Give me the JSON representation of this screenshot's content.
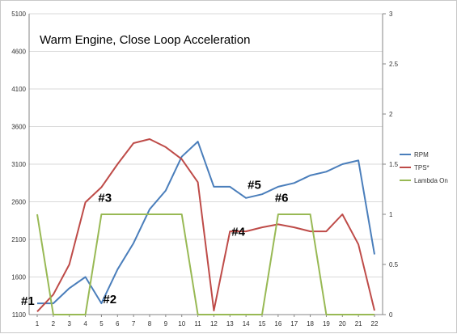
{
  "chart_data": {
    "type": "line",
    "title": "Warm Engine, Close Loop Acceleration",
    "x": [
      1,
      2,
      3,
      4,
      5,
      6,
      7,
      8,
      9,
      10,
      11,
      12,
      13,
      14,
      15,
      16,
      17,
      18,
      19,
      20,
      21,
      22
    ],
    "y_left_range": [
      1100,
      5100
    ],
    "y_left_ticks": [
      1100,
      1600,
      2100,
      2600,
      3100,
      3600,
      4100,
      4600,
      5100
    ],
    "y_right_range": [
      0,
      3
    ],
    "y_right_ticks": [
      0,
      0.5,
      1,
      1.5,
      2,
      2.5,
      3
    ],
    "y_right_tick_labels": [
      "0",
      "0.5",
      "1",
      "1.5",
      "2",
      "2.5",
      "3"
    ],
    "grid": "horizontal",
    "legend_position": "right",
    "series": [
      {
        "name": "RPM",
        "axis": "left",
        "color": "#4a7ebb",
        "values": [
          1250,
          1250,
          1450,
          1600,
          1250,
          1700,
          2050,
          2500,
          2750,
          3200,
          3400,
          2800,
          2800,
          2650,
          2700,
          2800,
          2850,
          2950,
          3000,
          3100,
          3150,
          1900
        ]
      },
      {
        "name": "TPS*",
        "axis": "right",
        "color": "#be4b48",
        "values": [
          0.03,
          0.2,
          0.5,
          1.12,
          1.27,
          1.5,
          1.71,
          1.75,
          1.67,
          1.55,
          1.32,
          0.04,
          0.83,
          0.83,
          0.87,
          0.9,
          0.87,
          0.83,
          0.83,
          1.0,
          0.7,
          0.04
        ]
      },
      {
        "name": "Lambda On",
        "axis": "right",
        "color": "#98b954",
        "values": [
          1,
          0,
          0,
          0,
          1,
          1,
          1,
          1,
          1,
          1,
          0,
          0,
          0,
          0,
          0,
          1,
          1,
          1,
          0,
          0,
          0,
          0
        ]
      }
    ],
    "annotations": [
      {
        "text": "#1",
        "x": 1,
        "y": 1230
      },
      {
        "text": "#2",
        "x": 5,
        "y": 1250
      },
      {
        "text": "#3",
        "x": 5,
        "y": 2600
      },
      {
        "text": "#4",
        "x": 13,
        "y": 2150
      },
      {
        "text": "#5",
        "x": 14,
        "y": 2770
      },
      {
        "text": "#6",
        "x": 16,
        "y": 2600
      }
    ]
  }
}
